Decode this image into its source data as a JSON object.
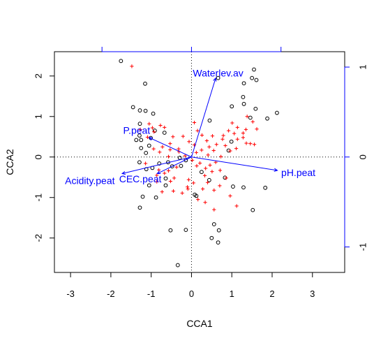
{
  "chart_data": {
    "type": "scatter",
    "title": "",
    "xlabel": "CCA1",
    "ylabel": "CCA2",
    "xlim": [
      -3.4,
      3.8
    ],
    "ylim": [
      -2.85,
      2.6
    ],
    "x_ticks": [
      -3,
      -2,
      -1,
      0,
      1,
      2,
      3
    ],
    "y_ticks": [
      -2,
      -1,
      0,
      1,
      2
    ],
    "x_tick_labels": [
      "-3",
      "-2",
      "-1",
      "0",
      "1",
      "2",
      "3"
    ],
    "y_tick_labels": [
      "-2",
      "-1",
      "0",
      "1",
      "2"
    ],
    "secondary_axes": {
      "ticks": [
        -1,
        0,
        1
      ],
      "tick_labels": [
        "-1",
        "0",
        "1"
      ],
      "scale": 2.22,
      "color": "#0000ff"
    },
    "reference_lines": {
      "x": 0,
      "y": 0,
      "style": "dotted"
    },
    "colors": {
      "sites": "#000000",
      "species": "#ff0000",
      "arrows": "#0000ff"
    },
    "series": [
      {
        "marker": "circle",
        "color": "#000000",
        "points": [
          [
            -1.75,
            2.37
          ],
          [
            -1.15,
            1.81
          ],
          [
            -1.45,
            1.23
          ],
          [
            -1.28,
            1.15
          ],
          [
            -1.14,
            1.14
          ],
          [
            -1.28,
            0.82
          ],
          [
            -0.95,
            1.07
          ],
          [
            -0.91,
            0.65
          ],
          [
            -1.01,
            0.47
          ],
          [
            -1.29,
            0.53
          ],
          [
            -1.37,
            0.42
          ],
          [
            -1.25,
            0.42
          ],
          [
            -0.67,
            0.6
          ],
          [
            -1.05,
            0.28
          ],
          [
            -1.25,
            0.22
          ],
          [
            -1.13,
            0.1
          ],
          [
            -1.29,
            -0.13
          ],
          [
            -0.97,
            -0.27
          ],
          [
            -0.58,
            -0.13
          ],
          [
            -0.48,
            -0.23
          ],
          [
            -0.8,
            -0.16
          ],
          [
            -0.29,
            -0.02
          ],
          [
            -0.14,
            -0.08
          ],
          [
            -0.26,
            -0.22
          ],
          [
            -1.12,
            -0.3
          ],
          [
            -0.64,
            -0.53
          ],
          [
            -0.64,
            -0.7
          ],
          [
            -1.05,
            -0.7
          ],
          [
            -0.88,
            -1.0
          ],
          [
            -1.21,
            -0.98
          ],
          [
            -1.28,
            -1.25
          ],
          [
            -0.52,
            -1.81
          ],
          [
            -0.14,
            -1.8
          ],
          [
            -0.34,
            -2.67
          ],
          [
            0.08,
            -0.93
          ],
          [
            0.12,
            -0.96
          ],
          [
            0.66,
            1.95
          ],
          [
            1.55,
            2.16
          ],
          [
            1.5,
            1.95
          ],
          [
            1.61,
            1.9
          ],
          [
            1.3,
            1.82
          ],
          [
            1.28,
            1.48
          ],
          [
            1.3,
            1.31
          ],
          [
            1.59,
            1.19
          ],
          [
            2.12,
            1.09
          ],
          [
            1.46,
            0.97
          ],
          [
            1.88,
            0.95
          ],
          [
            0.45,
            0.9
          ],
          [
            1.0,
            1.25
          ],
          [
            0.99,
            0.38
          ],
          [
            0.92,
            0.16
          ],
          [
            0.83,
            -0.51
          ],
          [
            0.25,
            -0.37
          ],
          [
            0.44,
            -0.57
          ],
          [
            1.03,
            -0.73
          ],
          [
            1.29,
            -0.75
          ],
          [
            1.83,
            -0.76
          ],
          [
            1.52,
            -1.31
          ],
          [
            0.56,
            -1.66
          ],
          [
            0.68,
            -1.81
          ],
          [
            0.5,
            -2.0
          ],
          [
            0.66,
            -2.11
          ]
        ]
      },
      {
        "marker": "plus",
        "color": "#ff0000",
        "points": [
          [
            -1.48,
            2.24
          ],
          [
            -1.05,
            0.82
          ],
          [
            -0.97,
            0.72
          ],
          [
            -0.77,
            0.78
          ],
          [
            -0.67,
            0.73
          ],
          [
            -1.27,
            0.68
          ],
          [
            -1.09,
            0.49
          ],
          [
            -0.93,
            0.62
          ],
          [
            -0.46,
            0.5
          ],
          [
            -0.21,
            0.51
          ],
          [
            -0.06,
            0.38
          ],
          [
            -0.53,
            0.33
          ],
          [
            -0.72,
            0.25
          ],
          [
            -0.94,
            0.2
          ],
          [
            -0.79,
            0.12
          ],
          [
            -0.53,
            0.18
          ],
          [
            -0.32,
            0.2
          ],
          [
            -0.16,
            0.03
          ],
          [
            -0.57,
            0.01
          ],
          [
            -1.14,
            -0.16
          ],
          [
            -0.81,
            -0.32
          ],
          [
            -0.57,
            -0.34
          ],
          [
            -0.67,
            -0.4
          ],
          [
            -0.86,
            -0.45
          ],
          [
            -0.43,
            -0.52
          ],
          [
            -0.86,
            -0.61
          ],
          [
            -0.73,
            -0.86
          ],
          [
            -0.52,
            -0.6
          ],
          [
            -0.45,
            -0.84
          ],
          [
            -0.07,
            -0.56
          ],
          [
            -0.1,
            -0.74
          ],
          [
            -0.23,
            -0.89
          ],
          [
            -0.09,
            -0.79
          ],
          [
            0.05,
            -0.64
          ],
          [
            0.28,
            -0.79
          ],
          [
            0.16,
            -1.05
          ],
          [
            0.34,
            -1.12
          ],
          [
            0.56,
            -1.3
          ],
          [
            0.96,
            -0.96
          ],
          [
            1.12,
            -1.21
          ],
          [
            0.07,
            0.85
          ],
          [
            0.15,
            0.65
          ],
          [
            0.26,
            0.54
          ],
          [
            0.38,
            0.4
          ],
          [
            0.44,
            0.25
          ],
          [
            0.55,
            0.16
          ],
          [
            0.62,
            0.31
          ],
          [
            0.79,
            0.53
          ],
          [
            0.92,
            0.65
          ],
          [
            1.01,
            0.84
          ],
          [
            1.14,
            0.73
          ],
          [
            1.14,
            0.44
          ],
          [
            1.28,
            0.48
          ],
          [
            1.36,
            0.34
          ],
          [
            1.46,
            0.33
          ],
          [
            1.56,
            0.31
          ],
          [
            1.11,
            0.21
          ],
          [
            0.96,
            0.15
          ],
          [
            0.84,
            0.28
          ],
          [
            0.77,
            0.44
          ],
          [
            0.73,
            0.01
          ],
          [
            0.6,
            -0.13
          ],
          [
            0.46,
            -0.2
          ],
          [
            0.35,
            -0.28
          ],
          [
            0.21,
            -0.15
          ],
          [
            0.13,
            -0.22
          ],
          [
            0.33,
            -0.46
          ],
          [
            0.51,
            -0.36
          ],
          [
            0.71,
            -0.33
          ],
          [
            0.86,
            -0.52
          ],
          [
            0.4,
            -0.63
          ],
          [
            0.56,
            -0.82
          ],
          [
            0.7,
            -0.71
          ],
          [
            1.38,
            1.0
          ],
          [
            1.52,
            0.87
          ],
          [
            1.62,
            0.69
          ],
          [
            1.35,
            0.68
          ],
          [
            1.28,
            0.59
          ],
          [
            1.06,
            0.58
          ],
          [
            0.25,
            0.17
          ],
          [
            0.12,
            0.11
          ],
          [
            0.02,
            -0.08
          ],
          [
            0.41,
            0.05
          ],
          [
            0.52,
            0.52
          ],
          [
            0.07,
            0.3
          ],
          [
            -0.37,
            -0.25
          ],
          [
            -0.31,
            0.13
          ]
        ]
      }
    ],
    "arrows": [
      {
        "label": "Waterlev.av",
        "end": [
          0.6,
          1.95
        ],
        "label_at": [
          0.66,
          2.07
        ]
      },
      {
        "label": "P.peat",
        "end": [
          -1.05,
          0.48
        ],
        "label_at": [
          -1.36,
          0.66
        ]
      },
      {
        "label": "Acidity.peat",
        "end": [
          -1.72,
          -0.41
        ],
        "label_at": [
          -2.52,
          -0.58
        ]
      },
      {
        "label": "CEC.peat",
        "end": [
          -0.85,
          -0.41
        ],
        "label_at": [
          -1.27,
          -0.54
        ]
      },
      {
        "label": "pH.peat",
        "end": [
          2.13,
          -0.33
        ],
        "label_at": [
          2.65,
          -0.38
        ]
      }
    ]
  }
}
